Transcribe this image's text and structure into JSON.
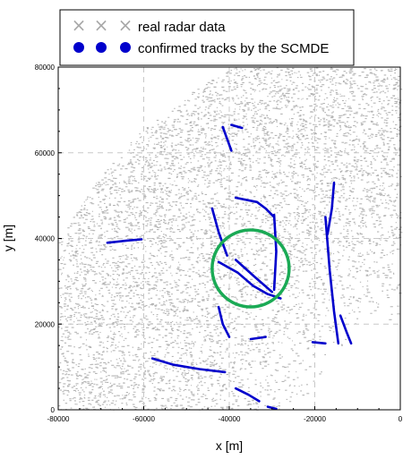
{
  "chart_data": {
    "type": "scatter",
    "xlabel": "x [m]",
    "ylabel": "y [m]",
    "xlim": [
      -80000,
      0
    ],
    "ylim": [
      0,
      80000
    ],
    "x_ticks": [
      -80000,
      -60000,
      -40000,
      -20000,
      0
    ],
    "y_ticks": [
      0,
      20000,
      40000,
      60000,
      80000
    ],
    "grid": "dashed",
    "legend_position": "top",
    "series": [
      {
        "name": "real radar data",
        "marker": "×",
        "color": "#a9a9a9",
        "description": "dense clutter of radar returns within a sensor coverage sector"
      },
      {
        "name": "confirmed tracks by the SCMDE",
        "marker": "●",
        "color": "#0000cc",
        "tracks": [
          [
            [
              -41500,
              66000
            ],
            [
              -39500,
              60500
            ]
          ],
          [
            [
              -39500,
              66500
            ],
            [
              -37000,
              65800
            ]
          ],
          [
            [
              -38500,
              49500
            ],
            [
              -33500,
              48500
            ],
            [
              -31500,
              47000
            ],
            [
              -29500,
              45000
            ]
          ],
          [
            [
              -44000,
              47000
            ],
            [
              -42500,
              41500
            ],
            [
              -40500,
              36000
            ]
          ],
          [
            [
              -42500,
              34500
            ],
            [
              -38000,
              32000
            ],
            [
              -34500,
              29000
            ],
            [
              -31000,
              27000
            ],
            [
              -28000,
              26000
            ]
          ],
          [
            [
              -29500,
              45500
            ],
            [
              -29000,
              37000
            ],
            [
              -29500,
              28000
            ]
          ],
          [
            [
              -38500,
              35000
            ],
            [
              -34000,
              31000
            ],
            [
              -30000,
              27500
            ]
          ],
          [
            [
              -68500,
              39000
            ],
            [
              -64000,
              39500
            ],
            [
              -60500,
              39800
            ]
          ],
          [
            [
              -42500,
              24000
            ],
            [
              -41500,
              20000
            ],
            [
              -40000,
              17000
            ]
          ],
          [
            [
              -35000,
              16500
            ],
            [
              -31500,
              17000
            ]
          ],
          [
            [
              -58000,
              12000
            ],
            [
              -53000,
              10500
            ],
            [
              -47000,
              9500
            ],
            [
              -41000,
              8800
            ]
          ],
          [
            [
              -38500,
              5000
            ],
            [
              -35500,
              3500
            ],
            [
              -33000,
              2000
            ]
          ],
          [
            [
              -31000,
              700
            ],
            [
              -29000,
              200
            ]
          ],
          [
            [
              -17500,
              45000
            ],
            [
              -16500,
              32500
            ],
            [
              -15500,
              23000
            ],
            [
              -14500,
              15500
            ]
          ],
          [
            [
              -15500,
              53000
            ],
            [
              -16000,
              47000
            ],
            [
              -17000,
              41000
            ]
          ],
          [
            [
              -14000,
              22000
            ],
            [
              -12500,
              18000
            ],
            [
              -11500,
              15500
            ]
          ],
          [
            [
              -20500,
              15800
            ],
            [
              -17500,
              15500
            ]
          ]
        ]
      }
    ],
    "annotations": [
      {
        "shape": "circle",
        "color": "#1aaa55",
        "center": [
          -35000,
          33000
        ],
        "radius": 9000
      }
    ]
  }
}
